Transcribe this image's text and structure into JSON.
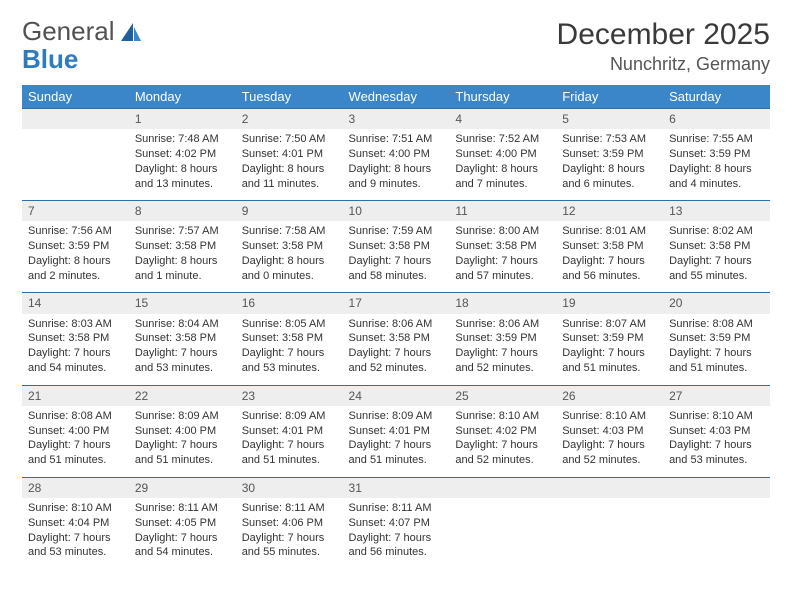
{
  "brand": {
    "word1": "General",
    "word2": "Blue"
  },
  "title": "December 2025",
  "location": "Nunchritz, Germany",
  "colors": {
    "header_bg": "#3a86c8",
    "header_text": "#ffffff",
    "daynum_bg": "#eeeeee",
    "daynum_border": "#2f6fa8",
    "body_text": "#333333",
    "brand_blue": "#2f7bbf",
    "brand_gray": "#525252"
  },
  "typography": {
    "title_fontsize": 30,
    "location_fontsize": 18,
    "dayheader_fontsize": 13,
    "cell_fontsize": 11,
    "daynum_fontsize": 12
  },
  "day_headers": [
    "Sunday",
    "Monday",
    "Tuesday",
    "Wednesday",
    "Thursday",
    "Friday",
    "Saturday"
  ],
  "weeks": [
    [
      {
        "num": "",
        "sunrise": "",
        "sunset": "",
        "daylight1": "",
        "daylight2": ""
      },
      {
        "num": "1",
        "sunrise": "Sunrise: 7:48 AM",
        "sunset": "Sunset: 4:02 PM",
        "daylight1": "Daylight: 8 hours",
        "daylight2": "and 13 minutes."
      },
      {
        "num": "2",
        "sunrise": "Sunrise: 7:50 AM",
        "sunset": "Sunset: 4:01 PM",
        "daylight1": "Daylight: 8 hours",
        "daylight2": "and 11 minutes."
      },
      {
        "num": "3",
        "sunrise": "Sunrise: 7:51 AM",
        "sunset": "Sunset: 4:00 PM",
        "daylight1": "Daylight: 8 hours",
        "daylight2": "and 9 minutes."
      },
      {
        "num": "4",
        "sunrise": "Sunrise: 7:52 AM",
        "sunset": "Sunset: 4:00 PM",
        "daylight1": "Daylight: 8 hours",
        "daylight2": "and 7 minutes."
      },
      {
        "num": "5",
        "sunrise": "Sunrise: 7:53 AM",
        "sunset": "Sunset: 3:59 PM",
        "daylight1": "Daylight: 8 hours",
        "daylight2": "and 6 minutes."
      },
      {
        "num": "6",
        "sunrise": "Sunrise: 7:55 AM",
        "sunset": "Sunset: 3:59 PM",
        "daylight1": "Daylight: 8 hours",
        "daylight2": "and 4 minutes."
      }
    ],
    [
      {
        "num": "7",
        "sunrise": "Sunrise: 7:56 AM",
        "sunset": "Sunset: 3:59 PM",
        "daylight1": "Daylight: 8 hours",
        "daylight2": "and 2 minutes."
      },
      {
        "num": "8",
        "sunrise": "Sunrise: 7:57 AM",
        "sunset": "Sunset: 3:58 PM",
        "daylight1": "Daylight: 8 hours",
        "daylight2": "and 1 minute."
      },
      {
        "num": "9",
        "sunrise": "Sunrise: 7:58 AM",
        "sunset": "Sunset: 3:58 PM",
        "daylight1": "Daylight: 8 hours",
        "daylight2": "and 0 minutes."
      },
      {
        "num": "10",
        "sunrise": "Sunrise: 7:59 AM",
        "sunset": "Sunset: 3:58 PM",
        "daylight1": "Daylight: 7 hours",
        "daylight2": "and 58 minutes."
      },
      {
        "num": "11",
        "sunrise": "Sunrise: 8:00 AM",
        "sunset": "Sunset: 3:58 PM",
        "daylight1": "Daylight: 7 hours",
        "daylight2": "and 57 minutes."
      },
      {
        "num": "12",
        "sunrise": "Sunrise: 8:01 AM",
        "sunset": "Sunset: 3:58 PM",
        "daylight1": "Daylight: 7 hours",
        "daylight2": "and 56 minutes."
      },
      {
        "num": "13",
        "sunrise": "Sunrise: 8:02 AM",
        "sunset": "Sunset: 3:58 PM",
        "daylight1": "Daylight: 7 hours",
        "daylight2": "and 55 minutes."
      }
    ],
    [
      {
        "num": "14",
        "sunrise": "Sunrise: 8:03 AM",
        "sunset": "Sunset: 3:58 PM",
        "daylight1": "Daylight: 7 hours",
        "daylight2": "and 54 minutes."
      },
      {
        "num": "15",
        "sunrise": "Sunrise: 8:04 AM",
        "sunset": "Sunset: 3:58 PM",
        "daylight1": "Daylight: 7 hours",
        "daylight2": "and 53 minutes."
      },
      {
        "num": "16",
        "sunrise": "Sunrise: 8:05 AM",
        "sunset": "Sunset: 3:58 PM",
        "daylight1": "Daylight: 7 hours",
        "daylight2": "and 53 minutes."
      },
      {
        "num": "17",
        "sunrise": "Sunrise: 8:06 AM",
        "sunset": "Sunset: 3:58 PM",
        "daylight1": "Daylight: 7 hours",
        "daylight2": "and 52 minutes."
      },
      {
        "num": "18",
        "sunrise": "Sunrise: 8:06 AM",
        "sunset": "Sunset: 3:59 PM",
        "daylight1": "Daylight: 7 hours",
        "daylight2": "and 52 minutes."
      },
      {
        "num": "19",
        "sunrise": "Sunrise: 8:07 AM",
        "sunset": "Sunset: 3:59 PM",
        "daylight1": "Daylight: 7 hours",
        "daylight2": "and 51 minutes."
      },
      {
        "num": "20",
        "sunrise": "Sunrise: 8:08 AM",
        "sunset": "Sunset: 3:59 PM",
        "daylight1": "Daylight: 7 hours",
        "daylight2": "and 51 minutes."
      }
    ],
    [
      {
        "num": "21",
        "sunrise": "Sunrise: 8:08 AM",
        "sunset": "Sunset: 4:00 PM",
        "daylight1": "Daylight: 7 hours",
        "daylight2": "and 51 minutes."
      },
      {
        "num": "22",
        "sunrise": "Sunrise: 8:09 AM",
        "sunset": "Sunset: 4:00 PM",
        "daylight1": "Daylight: 7 hours",
        "daylight2": "and 51 minutes."
      },
      {
        "num": "23",
        "sunrise": "Sunrise: 8:09 AM",
        "sunset": "Sunset: 4:01 PM",
        "daylight1": "Daylight: 7 hours",
        "daylight2": "and 51 minutes."
      },
      {
        "num": "24",
        "sunrise": "Sunrise: 8:09 AM",
        "sunset": "Sunset: 4:01 PM",
        "daylight1": "Daylight: 7 hours",
        "daylight2": "and 51 minutes."
      },
      {
        "num": "25",
        "sunrise": "Sunrise: 8:10 AM",
        "sunset": "Sunset: 4:02 PM",
        "daylight1": "Daylight: 7 hours",
        "daylight2": "and 52 minutes."
      },
      {
        "num": "26",
        "sunrise": "Sunrise: 8:10 AM",
        "sunset": "Sunset: 4:03 PM",
        "daylight1": "Daylight: 7 hours",
        "daylight2": "and 52 minutes."
      },
      {
        "num": "27",
        "sunrise": "Sunrise: 8:10 AM",
        "sunset": "Sunset: 4:03 PM",
        "daylight1": "Daylight: 7 hours",
        "daylight2": "and 53 minutes."
      }
    ],
    [
      {
        "num": "28",
        "sunrise": "Sunrise: 8:10 AM",
        "sunset": "Sunset: 4:04 PM",
        "daylight1": "Daylight: 7 hours",
        "daylight2": "and 53 minutes."
      },
      {
        "num": "29",
        "sunrise": "Sunrise: 8:11 AM",
        "sunset": "Sunset: 4:05 PM",
        "daylight1": "Daylight: 7 hours",
        "daylight2": "and 54 minutes."
      },
      {
        "num": "30",
        "sunrise": "Sunrise: 8:11 AM",
        "sunset": "Sunset: 4:06 PM",
        "daylight1": "Daylight: 7 hours",
        "daylight2": "and 55 minutes."
      },
      {
        "num": "31",
        "sunrise": "Sunrise: 8:11 AM",
        "sunset": "Sunset: 4:07 PM",
        "daylight1": "Daylight: 7 hours",
        "daylight2": "and 56 minutes."
      },
      {
        "num": "",
        "sunrise": "",
        "sunset": "",
        "daylight1": "",
        "daylight2": ""
      },
      {
        "num": "",
        "sunrise": "",
        "sunset": "",
        "daylight1": "",
        "daylight2": ""
      },
      {
        "num": "",
        "sunrise": "",
        "sunset": "",
        "daylight1": "",
        "daylight2": ""
      }
    ]
  ]
}
